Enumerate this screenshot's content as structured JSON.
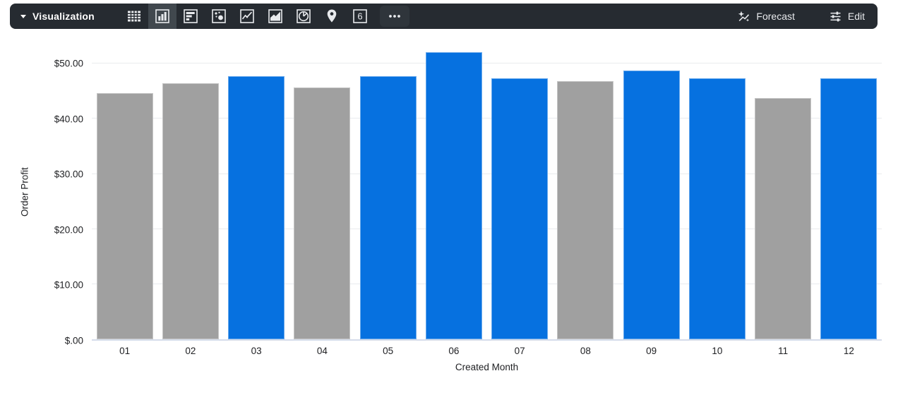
{
  "toolbar": {
    "menu_label": "Visualization",
    "icons": [
      {
        "name": "table",
        "selected": false
      },
      {
        "name": "column-chart",
        "selected": true
      },
      {
        "name": "bar-chart",
        "selected": false
      },
      {
        "name": "scatter-chart",
        "selected": false
      },
      {
        "name": "line-chart",
        "selected": false
      },
      {
        "name": "area-chart",
        "selected": false
      },
      {
        "name": "pie-chart",
        "selected": false
      },
      {
        "name": "map",
        "selected": false
      },
      {
        "name": "single-value",
        "selected": false
      },
      {
        "name": "more-options",
        "selected": false
      }
    ],
    "single_value_glyph": "6",
    "forecast_label": "Forecast",
    "edit_label": "Edit"
  },
  "chart_data": {
    "type": "bar",
    "title": "",
    "categories": [
      "01",
      "02",
      "03",
      "04",
      "05",
      "06",
      "07",
      "08",
      "09",
      "10",
      "11",
      "12"
    ],
    "series": [
      {
        "name": "Order Profit",
        "values": [
          44.6,
          46.5,
          47.7,
          45.7,
          47.7,
          52.1,
          47.3,
          46.8,
          48.7,
          47.3,
          43.8,
          47.3
        ]
      }
    ],
    "bar_colors": [
      "#a0a0a0",
      "#a0a0a0",
      "#0671e0",
      "#a0a0a0",
      "#0671e0",
      "#0671e0",
      "#0671e0",
      "#a0a0a0",
      "#0671e0",
      "#0671e0",
      "#a0a0a0",
      "#0671e0"
    ],
    "color_legend": {
      "highlight_blue": "#0671e0",
      "muted_gray": "#a0a0a0"
    },
    "xlabel": "Created Month",
    "ylabel": "Order Profit",
    "yticks": [
      {
        "value": 50,
        "label": "$50.00"
      },
      {
        "value": 40,
        "label": "$40.00"
      },
      {
        "value": 30,
        "label": "$30.00"
      },
      {
        "value": 20,
        "label": "$20.00"
      },
      {
        "value": 10,
        "label": "$10.00"
      },
      {
        "value": 0,
        "label": "$.00"
      }
    ],
    "ylim": [
      0,
      53.6
    ],
    "grid": true,
    "legend": "none"
  }
}
